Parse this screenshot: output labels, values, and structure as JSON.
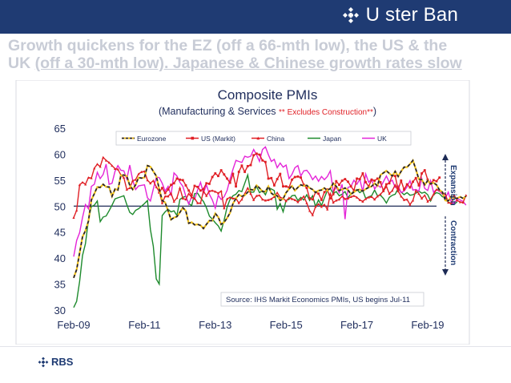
{
  "brand": {
    "name": "U ster Ban",
    "footer_name": "RBS",
    "colors": {
      "bar": "#1f3b73",
      "headline": "#c8ccd6"
    }
  },
  "headline": {
    "line1": "Growth quickens for the EZ (off a 66-mth low), the US & the",
    "line2_pre": "UK ",
    "line2_underlined": "(off a 30-mth low). Japanese & Chinese growth rates slow"
  },
  "chart_data": {
    "type": "line",
    "title": "Composite PMIs",
    "subtitle_prefix": "(Manufacturing & Services ",
    "subtitle_note": "** Excludes Construction**",
    "subtitle_suffix": ")",
    "source": "Source: IHS Markit Economics PMIs, US begins Jul-11",
    "right_labels": {
      "upper": "Expansion",
      "lower": "Contraction"
    },
    "ylim": [
      30,
      65
    ],
    "yticks": [
      "65",
      "60",
      "55",
      "50",
      "45",
      "40",
      "35",
      "30"
    ],
    "xlim": [
      "2009-02",
      "2019-05"
    ],
    "xticks": [
      "Feb-09",
      "Feb-11",
      "Feb-13",
      "Feb-15",
      "Feb-17",
      "Feb-19"
    ],
    "reference_line": 50,
    "grid": false,
    "legend_position": "top",
    "series": [
      {
        "name": "Eurozone",
        "color": "#1a1a3c",
        "style": "dashed",
        "start": "2009-02",
        "values": [
          36.2,
          37.8,
          41.0,
          44.1,
          45.3,
          47.1,
          51.2,
          52.4,
          53.7,
          53.6,
          54.2,
          53.7,
          53.7,
          51.9,
          53.3,
          53.1,
          55.9,
          56.0,
          55.8,
          54.0,
          53.2,
          54.1,
          55.5,
          55.4,
          55.5,
          57.8,
          57.6,
          56.7,
          55.8,
          53.3,
          51.1,
          50.7,
          49.1,
          47.4,
          47.8,
          48.0,
          48.8,
          49.7,
          49.1,
          46.7,
          46.9,
          46.4,
          46.5,
          46.3,
          45.7,
          46.5,
          47.2,
          47.2,
          48.6,
          47.9,
          46.5,
          46.9,
          47.7,
          48.7,
          50.5,
          51.5,
          52.2,
          51.9,
          52.1,
          52.7,
          53.2,
          53.1,
          54.0,
          53.5,
          52.8,
          52.8,
          53.8,
          52.5,
          52.1,
          52.0,
          51.1,
          51.4,
          52.6,
          53.3,
          53.9,
          53.0,
          53.6,
          54.1,
          53.9,
          54.0,
          53.5,
          53.2,
          52.6,
          53.0,
          53.1,
          53.5,
          53.0,
          53.4,
          54.4,
          53.8,
          53.0,
          53.2,
          53.5,
          53.1,
          52.3,
          52.7,
          53.1,
          53.2,
          52.9,
          53.3,
          53.6,
          53.8,
          54.4,
          53.9,
          56.0,
          56.4,
          56.8,
          56.3,
          55.8,
          56.7,
          55.7,
          56.7,
          57.5,
          57.5,
          58.1,
          58.8,
          57.1,
          55.2,
          55.1,
          54.1,
          54.9,
          54.3,
          54.5,
          54.1,
          53.1,
          52.7,
          51.1,
          51.0,
          51.9,
          51.6,
          51.5,
          51.8,
          51.5,
          51.9
        ]
      },
      {
        "name": "US (Markit)",
        "color": "#e01f25",
        "style": "solid-square",
        "start": "2011-07",
        "values": [
          52.6,
          53.5,
          52.5,
          53.2,
          54.1,
          54.4,
          55.3,
          55.1,
          55.0,
          54.0,
          53.0,
          52.1,
          53.9,
          53.7,
          53.0,
          53.3,
          54.4,
          54.3,
          55.6,
          56.3,
          55.8,
          56.9,
          56.1,
          55.3,
          54.5,
          56.2,
          53.8,
          56.6,
          57.8,
          56.6,
          57.7,
          57.9,
          59.8,
          60.1,
          59.9,
          58.8,
          58.5,
          55.3,
          55.4,
          54.0,
          55.2,
          56.2,
          53.8,
          53.8,
          53.6,
          55.1,
          55.6,
          55.7,
          55.5,
          54.1,
          53.5,
          51.5,
          51.3,
          52.7,
          52.4,
          51.2,
          52.7,
          53.2,
          51.5,
          52.3,
          54.8,
          54.1,
          54.9,
          55.2,
          54.7,
          53.8,
          53.0,
          55.3,
          55.2,
          56.3,
          54.6,
          53.8,
          55.1,
          54.9,
          55.3,
          54.6,
          53.0,
          54.2,
          54.4,
          55.9,
          55.8,
          53.2,
          54.9,
          53.2,
          54.2,
          53.6,
          54.7,
          55.4,
          54.0,
          56.3,
          56.9,
          55.1,
          54.3,
          55.0,
          54.8,
          55.5
        ]
      },
      {
        "name": "China",
        "color": "#e01f25",
        "style": "solid-triangle",
        "start": "2009-02",
        "values": [
          47.8,
          49.2,
          54.1,
          54.6,
          54.2,
          55.5,
          55.4,
          57.3,
          58.1,
          57.6,
          59.4,
          58.8,
          58.4,
          57.8,
          57.2,
          57.1,
          56.0,
          55.5,
          53.2,
          53.5,
          54.9,
          55.1,
          56.2,
          56.6,
          56.7,
          55.0,
          54.4,
          54.9,
          53.7,
          52.8,
          50.6,
          51.9,
          51.9,
          52.5,
          50.9,
          51.6,
          53.5,
          51.5,
          51.3,
          52.4,
          51.7,
          51.5,
          50.6,
          50.6,
          52.9,
          52.0,
          52.9,
          53.0,
          52.8,
          52.5,
          52.9,
          49.6,
          51.4,
          51.7,
          51.5,
          51.5,
          50.6,
          51.3,
          52.4,
          53.5,
          52.4,
          51.2,
          52.0,
          52.1,
          51.3,
          51.1,
          51.2,
          51.4,
          51.8,
          52.6,
          51.7,
          51.5,
          51.0,
          51.6,
          51.4,
          51.2,
          50.8,
          51.3,
          51.9,
          50.6,
          49.1,
          48.3,
          49.9,
          50.4,
          49.9,
          50.3,
          49.4,
          52.4,
          50.7,
          51.1,
          51.3,
          51.9,
          51.4,
          51.5,
          51.8,
          52.0,
          51.7,
          51.2,
          50.9,
          51.4,
          51.7,
          51.8,
          51.3,
          51.9,
          52.3,
          52.9,
          53.8,
          52.4,
          53.0,
          54.1,
          52.9,
          51.9,
          51.2,
          51.3,
          50.3,
          51.1,
          53.0,
          52.4,
          51.5,
          52.1,
          50.9,
          51.3,
          52.3,
          53.2,
          53.1,
          52.6,
          52.3,
          50.7,
          50.5,
          52.1,
          51.1,
          50.8,
          50.7,
          52.1
        ]
      },
      {
        "name": "Japan",
        "color": "#1d8a2c",
        "style": "solid",
        "start": "2009-02",
        "values": [
          30.5,
          31.7,
          35.5,
          40.5,
          42.8,
          47.3,
          49.9,
          50.2,
          51.0,
          47.0,
          47.9,
          48.1,
          49.1,
          50.2,
          51.4,
          51.6,
          51.8,
          52.0,
          50.3,
          48.8,
          48.4,
          49.2,
          49.5,
          50.0,
          50.5,
          51.1,
          45.5,
          42.3,
          36.0,
          35.0,
          48.2,
          48.9,
          49.4,
          48.9,
          49.1,
          48.2,
          51.3,
          51.7,
          51.9,
          50.5,
          50.1,
          52.4,
          52.5,
          51.6,
          50.9,
          49.7,
          48.1,
          47.5,
          46.8,
          46.2,
          45.2,
          47.3,
          49.8,
          51.3,
          52.0,
          52.3,
          53.0,
          52.8,
          54.4,
          56.0,
          52.7,
          52.7,
          53.8,
          52.6,
          53.0,
          52.2,
          53.6,
          53.3,
          53.0,
          49.4,
          50.5,
          48.9,
          51.1,
          51.3,
          52.0,
          52.1,
          51.1,
          51.7,
          51.2,
          52.2,
          51.1,
          52.0,
          49.9,
          51.2,
          50.1,
          51.6,
          53.0,
          53.4,
          52.4,
          52.8,
          52.0,
          52.3,
          52.8,
          51.6,
          52.4,
          52.9,
          53.2,
          52.6,
          53.0,
          51.5,
          51.8,
          52.0,
          53.1,
          52.0,
          52.1,
          51.5,
          50.6,
          51.7,
          52.1,
          52.3,
          53.4,
          52.7,
          52.2,
          52.6,
          52.1,
          52.2,
          52.5,
          52.9,
          52.5,
          52.7,
          52.2,
          51.0,
          52.2,
          52.6,
          52.4,
          51.8,
          51.7,
          50.7,
          50.6,
          50.4,
          50.8
        ]
      },
      {
        "name": "UK",
        "color": "#e424d8",
        "style": "solid",
        "start": "2009-02",
        "values": [
          40.3,
          43.4,
          44.9,
          47.8,
          50.3,
          49.5,
          53.8,
          54.2,
          56.5,
          55.3,
          56.1,
          58.1,
          54.2,
          54.4,
          56.7,
          57.8,
          56.9,
          56.8,
          55.2,
          57.9,
          55.0,
          53.2,
          53.9,
          54.0,
          54.1,
          51.6,
          51.0,
          53.3,
          55.6,
          55.5,
          54.4,
          52.9,
          53.8,
          52.0,
          56.4,
          55.8,
          54.6,
          53.8,
          51.9,
          50.4,
          51.8,
          51.3,
          53.1,
          54.6,
          52.5,
          54.1,
          52.3,
          51.2,
          49.6,
          52.1,
          51.3,
          51.8,
          53.0,
          55.2,
          57.1,
          58.8,
          58.6,
          58.4,
          59.6,
          59.4,
          59.6,
          60.9,
          59.9,
          58.6,
          60.9,
          61.4,
          59.9,
          58.6,
          59.0,
          57.4,
          58.3,
          57.5,
          57.9,
          55.3,
          56.1,
          57.4,
          57.8,
          55.8,
          56.8,
          56.9,
          56.2,
          55.1,
          55.8,
          54.8,
          55.7,
          55.1,
          55.7,
          56.8,
          52.8,
          53.6,
          52.6,
          54.2,
          47.5,
          53.6,
          53.8,
          55.0,
          54.2,
          55.2,
          52.8,
          56.2,
          54.6,
          55.2,
          53.3,
          54.1,
          53.6,
          54.7,
          55.8,
          54.6,
          55.0,
          53.6,
          53.9,
          52.6,
          52.9,
          53.7,
          54.9,
          53.1,
          53.2,
          52.9,
          55.3,
          53.4,
          53.0,
          54.9,
          52.7,
          53.2,
          52.8,
          52.3,
          51.5,
          52.7,
          50.7,
          50.5,
          51.4,
          51.2,
          50.9,
          50.2
        ]
      }
    ]
  }
}
